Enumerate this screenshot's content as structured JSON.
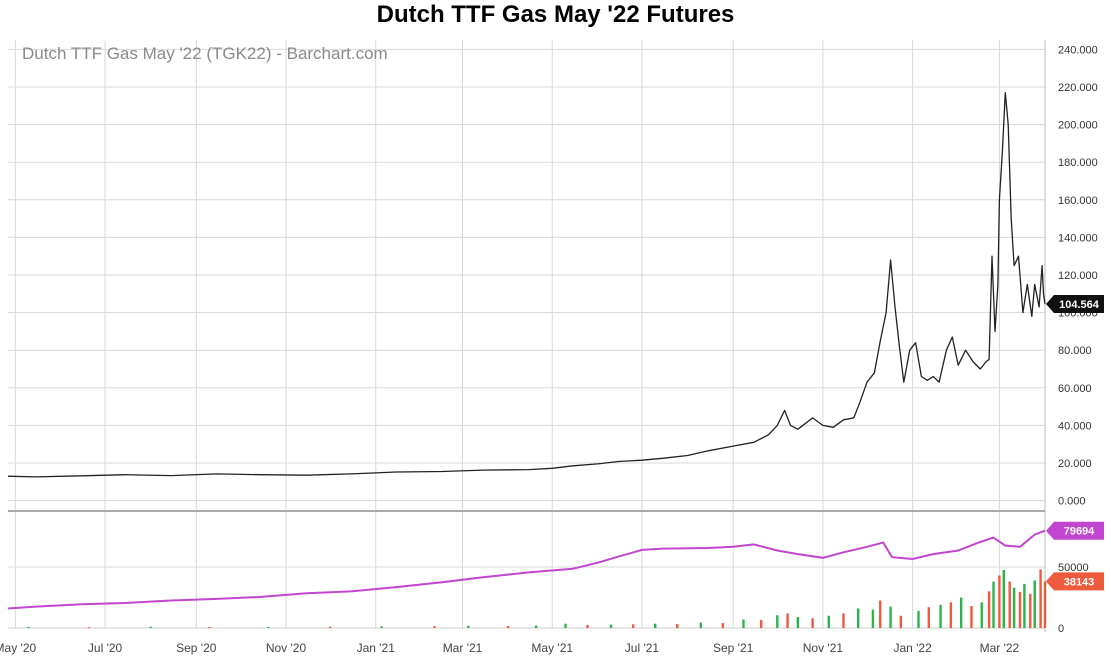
{
  "page_title": "Dutch TTF Gas May '22 Futures",
  "chart_data": {
    "type": "line",
    "watermark": "Dutch TTF Gas May '22 (TGK22) - Barchart.com",
    "colors": {
      "price": "#222222",
      "open_interest": "#c146cf",
      "volume_up": "#2bb44a",
      "volume_down": "#ee5a3c",
      "grid": "#d8d8d8",
      "last_label": "#111111"
    },
    "x_ticks": [
      "May '20",
      "Jul '20",
      "Sep '20",
      "Nov '20",
      "Jan '21",
      "Mar '21",
      "May '21",
      "Jul '21",
      "Sep '21",
      "Nov '21",
      "Jan '22",
      "Mar '22"
    ],
    "x_tick_dates": [
      "2020-05-01",
      "2020-07-01",
      "2020-09-01",
      "2020-11-01",
      "2021-01-01",
      "2021-03-01",
      "2021-05-01",
      "2021-07-01",
      "2021-09-01",
      "2021-11-01",
      "2022-01-01",
      "2022-03-01"
    ],
    "x_range": [
      "2020-04-26",
      "2022-04-01"
    ],
    "price_panel": {
      "ylim": [
        -5,
        245
      ],
      "y_ticks": [
        "0.000",
        "20.000",
        "40.000",
        "60.000",
        "80.000",
        "100.000",
        "120.000",
        "140.000",
        "160.000",
        "180.000",
        "200.000",
        "220.000",
        "240.000"
      ],
      "y_tick_values": [
        0,
        20,
        40,
        60,
        80,
        100,
        120,
        140,
        160,
        180,
        200,
        220,
        240
      ],
      "last_value_label": "104.564",
      "series": [
        {
          "points": [
            [
              "2020-04-26",
              13
            ],
            [
              "2020-05-15",
              12.6
            ],
            [
              "2020-06-15",
              13.2
            ],
            [
              "2020-07-15",
              13.8
            ],
            [
              "2020-08-15",
              13.3
            ],
            [
              "2020-09-15",
              14.2
            ],
            [
              "2020-10-15",
              13.8
            ],
            [
              "2020-11-15",
              13.5
            ],
            [
              "2020-12-15",
              14.2
            ],
            [
              "2021-01-15",
              15.2
            ],
            [
              "2021-02-15",
              15.5
            ],
            [
              "2021-03-15",
              16.2
            ],
            [
              "2021-04-15",
              16.5
            ],
            [
              "2021-05-01",
              17.2
            ],
            [
              "2021-05-15",
              18.5
            ],
            [
              "2021-06-01",
              19.5
            ],
            [
              "2021-06-15",
              20.8
            ],
            [
              "2021-07-01",
              21.5
            ],
            [
              "2021-07-15",
              22.5
            ],
            [
              "2021-08-01",
              24
            ],
            [
              "2021-08-15",
              26.5
            ],
            [
              "2021-09-01",
              29
            ],
            [
              "2021-09-15",
              31
            ],
            [
              "2021-09-25",
              35
            ],
            [
              "2021-10-01",
              40
            ],
            [
              "2021-10-06",
              48
            ],
            [
              "2021-10-10",
              40
            ],
            [
              "2021-10-15",
              38
            ],
            [
              "2021-10-25",
              44
            ],
            [
              "2021-11-01",
              40
            ],
            [
              "2021-11-08",
              39
            ],
            [
              "2021-11-15",
              43
            ],
            [
              "2021-11-22",
              44
            ],
            [
              "2021-11-26",
              52
            ],
            [
              "2021-12-01",
              63
            ],
            [
              "2021-12-06",
              68
            ],
            [
              "2021-12-10",
              85
            ],
            [
              "2021-12-14",
              100
            ],
            [
              "2021-12-17",
              128
            ],
            [
              "2021-12-20",
              103
            ],
            [
              "2021-12-23",
              82
            ],
            [
              "2021-12-26",
              63
            ],
            [
              "2021-12-30",
              80
            ],
            [
              "2022-01-03",
              84
            ],
            [
              "2022-01-07",
              66
            ],
            [
              "2022-01-11",
              64
            ],
            [
              "2022-01-15",
              66
            ],
            [
              "2022-01-19",
              63
            ],
            [
              "2022-01-24",
              80
            ],
            [
              "2022-01-28",
              87
            ],
            [
              "2022-02-01",
              72
            ],
            [
              "2022-02-06",
              80
            ],
            [
              "2022-02-11",
              74
            ],
            [
              "2022-02-16",
              70
            ],
            [
              "2022-02-20",
              74
            ],
            [
              "2022-02-22",
              75
            ],
            [
              "2022-02-24",
              130
            ],
            [
              "2022-02-26",
              90
            ],
            [
              "2022-02-28",
              115
            ],
            [
              "2022-03-01",
              160
            ],
            [
              "2022-03-03",
              185
            ],
            [
              "2022-03-05",
              217
            ],
            [
              "2022-03-07",
              200
            ],
            [
              "2022-03-09",
              150
            ],
            [
              "2022-03-11",
              125
            ],
            [
              "2022-03-14",
              130
            ],
            [
              "2022-03-17",
              100
            ],
            [
              "2022-03-20",
              115
            ],
            [
              "2022-03-23",
              98
            ],
            [
              "2022-03-25",
              115
            ],
            [
              "2022-03-28",
              103
            ],
            [
              "2022-03-30",
              125
            ],
            [
              "2022-03-31",
              110
            ],
            [
              "2022-04-01",
              104.564
            ]
          ]
        }
      ]
    },
    "lower_panel": {
      "ylim": [
        0,
        95000
      ],
      "y_ticks": [
        "0",
        "50000"
      ],
      "y_tick_values": [
        0,
        50000
      ],
      "open_interest_label": "79694",
      "volume_label": "38143",
      "open_interest": [
        [
          "2020-04-26",
          16000
        ],
        [
          "2020-05-15",
          17500
        ],
        [
          "2020-06-15",
          19500
        ],
        [
          "2020-07-15",
          20500
        ],
        [
          "2020-08-15",
          22500
        ],
        [
          "2020-09-15",
          23800
        ],
        [
          "2020-10-15",
          25500
        ],
        [
          "2020-11-15",
          28500
        ],
        [
          "2020-12-15",
          30000
        ],
        [
          "2021-01-15",
          33500
        ],
        [
          "2021-02-15",
          37500
        ],
        [
          "2021-03-15",
          41500
        ],
        [
          "2021-04-15",
          45500
        ],
        [
          "2021-05-15",
          48500
        ],
        [
          "2021-06-01",
          53500
        ],
        [
          "2021-06-15",
          58500
        ],
        [
          "2021-07-01",
          64000
        ],
        [
          "2021-07-15",
          65000
        ],
        [
          "2021-08-15",
          65500
        ],
        [
          "2021-09-01",
          66500
        ],
        [
          "2021-09-15",
          68500
        ],
        [
          "2021-10-01",
          63500
        ],
        [
          "2021-10-15",
          60500
        ],
        [
          "2021-11-01",
          57500
        ],
        [
          "2021-11-15",
          62000
        ],
        [
          "2021-12-01",
          66500
        ],
        [
          "2021-12-12",
          70000
        ],
        [
          "2021-12-18",
          58000
        ],
        [
          "2022-01-01",
          56500
        ],
        [
          "2022-01-15",
          60500
        ],
        [
          "2022-02-01",
          63500
        ],
        [
          "2022-02-15",
          70000
        ],
        [
          "2022-02-25",
          74000
        ],
        [
          "2022-03-05",
          67500
        ],
        [
          "2022-03-15",
          66500
        ],
        [
          "2022-03-25",
          76500
        ],
        [
          "2022-04-01",
          79694
        ]
      ],
      "volume": [
        [
          "2020-05-10",
          900,
          "up"
        ],
        [
          "2020-06-20",
          700,
          "down"
        ],
        [
          "2020-08-01",
          1000,
          "up"
        ],
        [
          "2020-09-10",
          800,
          "down"
        ],
        [
          "2020-10-20",
          900,
          "up"
        ],
        [
          "2020-12-01",
          1100,
          "down"
        ],
        [
          "2021-01-05",
          1300,
          "up"
        ],
        [
          "2021-02-10",
          1500,
          "down"
        ],
        [
          "2021-03-05",
          1800,
          "up"
        ],
        [
          "2021-04-01",
          1700,
          "down"
        ],
        [
          "2021-04-20",
          2000,
          "up"
        ],
        [
          "2021-05-10",
          3500,
          "up"
        ],
        [
          "2021-05-25",
          2500,
          "down"
        ],
        [
          "2021-06-10",
          2800,
          "up"
        ],
        [
          "2021-06-25",
          3000,
          "down"
        ],
        [
          "2021-07-10",
          3500,
          "up"
        ],
        [
          "2021-07-25",
          3200,
          "down"
        ],
        [
          "2021-08-10",
          4500,
          "up"
        ],
        [
          "2021-08-25",
          4000,
          "down"
        ],
        [
          "2021-09-08",
          7000,
          "up"
        ],
        [
          "2021-09-20",
          6500,
          "down"
        ],
        [
          "2021-10-01",
          10500,
          "up"
        ],
        [
          "2021-10-08",
          12000,
          "down"
        ],
        [
          "2021-10-15",
          9000,
          "up"
        ],
        [
          "2021-10-25",
          8000,
          "down"
        ],
        [
          "2021-11-05",
          10000,
          "up"
        ],
        [
          "2021-11-15",
          12000,
          "down"
        ],
        [
          "2021-11-25",
          16000,
          "up"
        ],
        [
          "2021-12-05",
          15000,
          "up"
        ],
        [
          "2021-12-10",
          22500,
          "down"
        ],
        [
          "2021-12-17",
          17500,
          "up"
        ],
        [
          "2021-12-24",
          10000,
          "down"
        ],
        [
          "2022-01-05",
          14000,
          "up"
        ],
        [
          "2022-01-12",
          17000,
          "down"
        ],
        [
          "2022-01-20",
          19000,
          "up"
        ],
        [
          "2022-01-27",
          21000,
          "down"
        ],
        [
          "2022-02-03",
          25000,
          "up"
        ],
        [
          "2022-02-10",
          18000,
          "down"
        ],
        [
          "2022-02-17",
          21000,
          "up"
        ],
        [
          "2022-02-22",
          30000,
          "down"
        ],
        [
          "2022-02-25",
          38000,
          "up"
        ],
        [
          "2022-03-01",
          43000,
          "down"
        ],
        [
          "2022-03-04",
          47500,
          "up"
        ],
        [
          "2022-03-08",
          38000,
          "down"
        ],
        [
          "2022-03-11",
          33000,
          "up"
        ],
        [
          "2022-03-15",
          29500,
          "down"
        ],
        [
          "2022-03-18",
          36000,
          "up"
        ],
        [
          "2022-03-22",
          28000,
          "down"
        ],
        [
          "2022-03-25",
          39000,
          "up"
        ],
        [
          "2022-03-29",
          48000,
          "down"
        ],
        [
          "2022-04-01",
          38143,
          "down"
        ]
      ]
    }
  }
}
